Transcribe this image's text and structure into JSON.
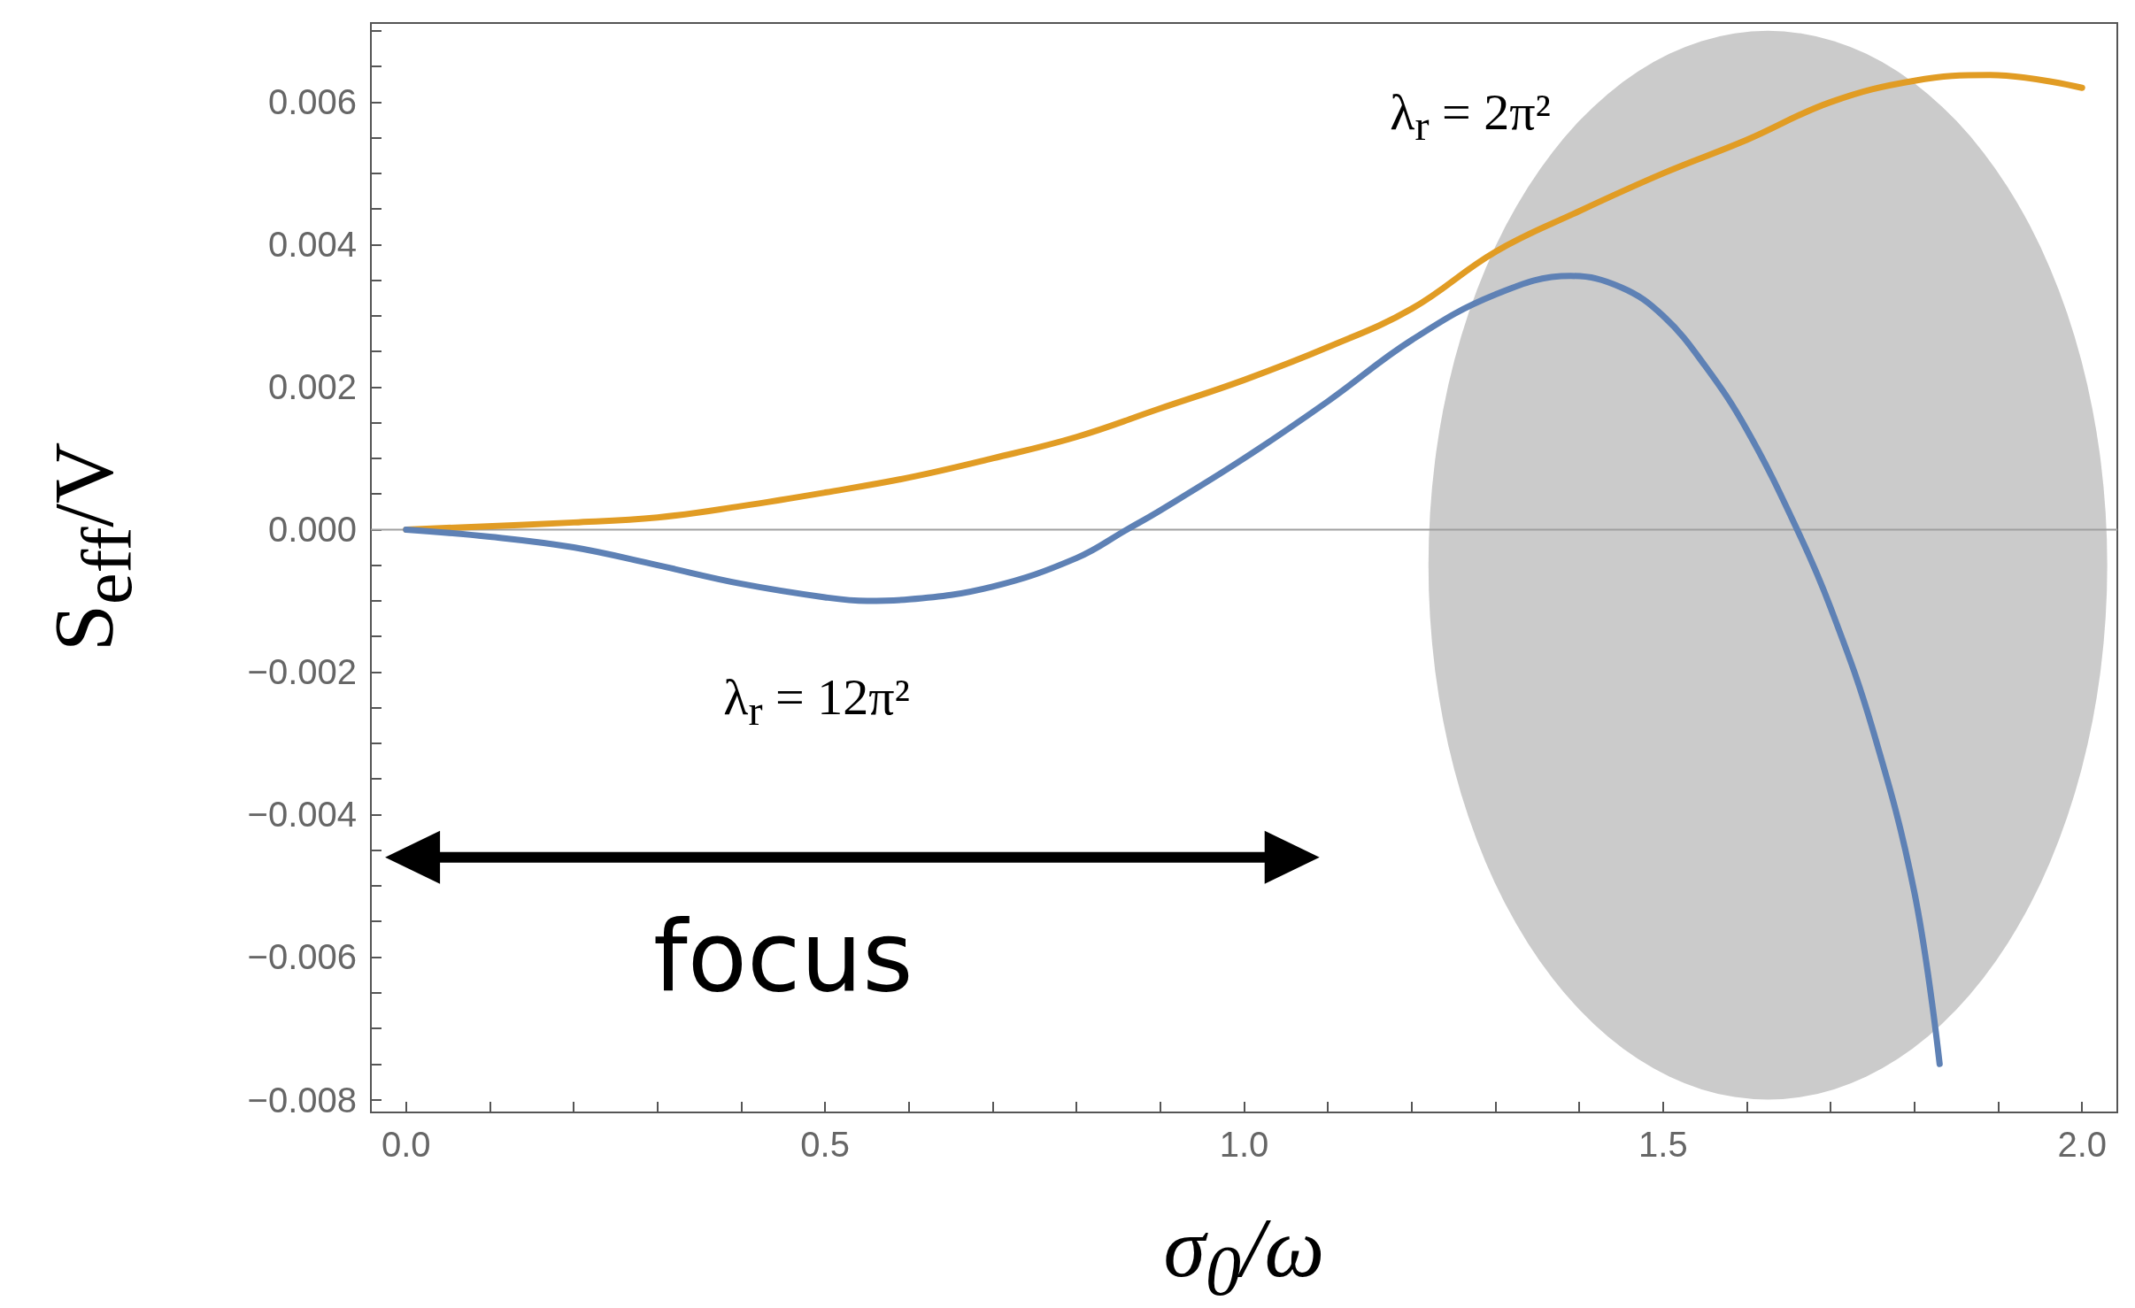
{
  "chart_data": {
    "type": "line",
    "xlabel": "σ$_{0}$/ω",
    "ylabel": "S$_{eff}$/V",
    "xlim": [
      -0.042,
      2.042
    ],
    "ylim": [
      -0.00818,
      0.00711
    ],
    "xticks": [
      {
        "value": 0,
        "label": "0.0"
      },
      {
        "value": 0.1,
        "label": null
      },
      {
        "value": 0.2,
        "label": null
      },
      {
        "value": 0.3,
        "label": null
      },
      {
        "value": 0.4,
        "label": null
      },
      {
        "value": 0.5,
        "label": "0.5"
      },
      {
        "value": 0.6,
        "label": null
      },
      {
        "value": 0.7,
        "label": null
      },
      {
        "value": 0.8,
        "label": null
      },
      {
        "value": 0.9,
        "label": null
      },
      {
        "value": 1,
        "label": "1.0"
      },
      {
        "value": 1.1,
        "label": null
      },
      {
        "value": 1.2,
        "label": null
      },
      {
        "value": 1.3,
        "label": null
      },
      {
        "value": 1.4,
        "label": null
      },
      {
        "value": 1.5,
        "label": "1.5"
      },
      {
        "value": 1.6,
        "label": null
      },
      {
        "value": 1.7,
        "label": null
      },
      {
        "value": 1.8,
        "label": null
      },
      {
        "value": 1.9,
        "label": null
      },
      {
        "value": 2,
        "label": "2.0"
      }
    ],
    "yticks": [
      {
        "value": -0.008,
        "label": "−0.008"
      },
      {
        "value": -0.0075,
        "label": null
      },
      {
        "value": -0.007,
        "label": null
      },
      {
        "value": -0.0065,
        "label": null
      },
      {
        "value": -0.006,
        "label": "−0.006"
      },
      {
        "value": -0.0055,
        "label": null
      },
      {
        "value": -0.005,
        "label": null
      },
      {
        "value": -0.0045,
        "label": null
      },
      {
        "value": -0.004,
        "label": "−0.004"
      },
      {
        "value": -0.0035,
        "label": null
      },
      {
        "value": -0.003,
        "label": null
      },
      {
        "value": -0.0025,
        "label": null
      },
      {
        "value": -0.002,
        "label": "−0.002"
      },
      {
        "value": -0.0015,
        "label": null
      },
      {
        "value": -0.001,
        "label": null
      },
      {
        "value": -0.0005,
        "label": null
      },
      {
        "value": 0,
        "label": "0.000"
      },
      {
        "value": 0.0005,
        "label": null
      },
      {
        "value": 0.001,
        "label": null
      },
      {
        "value": 0.0015,
        "label": null
      },
      {
        "value": 0.002,
        "label": "0.002"
      },
      {
        "value": 0.0025,
        "label": null
      },
      {
        "value": 0.003,
        "label": null
      },
      {
        "value": 0.0035,
        "label": null
      },
      {
        "value": 0.004,
        "label": "0.004"
      },
      {
        "value": 0.0045,
        "label": null
      },
      {
        "value": 0.005,
        "label": null
      },
      {
        "value": 0.0055,
        "label": null
      },
      {
        "value": 0.006,
        "label": "0.006"
      },
      {
        "value": 0.0065,
        "label": null
      },
      {
        "value": 0.007,
        "label": null
      }
    ],
    "grid": false,
    "marker": "none",
    "line_style": "solid",
    "ref_lines": [
      {
        "axis": "y",
        "value": 0,
        "color": "#a0a0a0"
      }
    ],
    "annotations": [
      "λ$_{r}$ = 2π²",
      "λ$_{r}$ = 12π²",
      "focus"
    ],
    "series": [
      {
        "color": "#e19c24",
        "x": [
          0,
          0.2,
          0.3,
          0.4,
          0.5,
          0.6,
          0.7,
          0.8,
          0.9,
          1.0,
          1.1,
          1.2,
          1.3,
          1.4,
          1.5,
          1.6,
          1.7,
          1.8,
          1.89,
          2.0
        ],
        "values": [
          0,
          0.0001,
          0.00017,
          0.00033,
          0.00052,
          0.00073,
          0.001,
          0.0013,
          0.0017,
          0.0021,
          0.00256,
          0.0031,
          0.0039,
          0.00447,
          0.005,
          0.00547,
          0.006,
          0.0063,
          0.00638,
          0.0062
        ]
      },
      {
        "color": "#5e81b5",
        "x": [
          0,
          0.1,
          0.2,
          0.3,
          0.4,
          0.5,
          0.55,
          0.6,
          0.7,
          0.8,
          0.86,
          0.9,
          1.0,
          1.1,
          1.2,
          1.3,
          1.39,
          1.45,
          1.5,
          1.55,
          1.6,
          1.66,
          1.7,
          1.75,
          1.8,
          1.83
        ],
        "values": [
          0,
          -0.0001,
          -0.00025,
          -0.0005,
          -0.00076,
          -0.00095,
          -0.001,
          -0.00098,
          -0.0008,
          -0.0004,
          0,
          0.00027,
          0.001,
          0.0018,
          0.00266,
          0.0033,
          0.00356,
          0.0034,
          0.003,
          0.0023,
          0.0014,
          0,
          -0.0011,
          -0.0028,
          -0.0051,
          -0.0075
        ]
      }
    ]
  }
}
